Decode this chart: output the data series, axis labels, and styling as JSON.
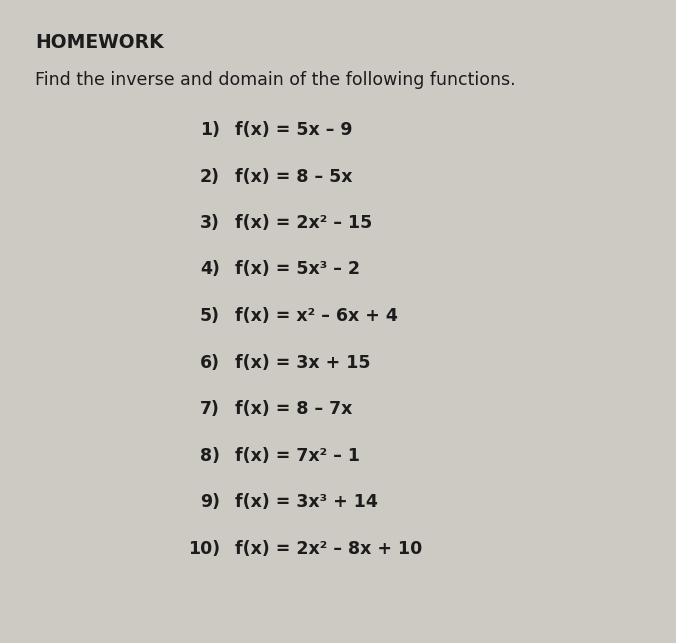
{
  "title": "HOMEWORK",
  "subtitle": "Find the inverse and domain of the following functions.",
  "items": [
    [
      "1)",
      "f(x) = 5x – 9"
    ],
    [
      "2)",
      "f(x) = 8 – 5x"
    ],
    [
      "3)",
      "f(x) = 2x² – 15"
    ],
    [
      "4)",
      "f(x) = 5x³ – 2"
    ],
    [
      "5)",
      "f(x) = x² – 6x + 4"
    ],
    [
      "6)",
      "f(x) = 3x + 15"
    ],
    [
      "7)",
      "f(x) = 8 – 7x"
    ],
    [
      "8)",
      "f(x) = 7x² – 1"
    ],
    [
      "9)",
      "f(x) = 3x³ + 14"
    ],
    [
      "10)",
      "f(x) = 2x² – 8x + 10"
    ]
  ],
  "bg_color": "#cdc9c3",
  "text_color": "#1c1c1c",
  "title_fontsize": 13.5,
  "subtitle_fontsize": 12.5,
  "item_fontsize": 12.5,
  "fig_width": 6.76,
  "fig_height": 6.43,
  "dpi": 100
}
